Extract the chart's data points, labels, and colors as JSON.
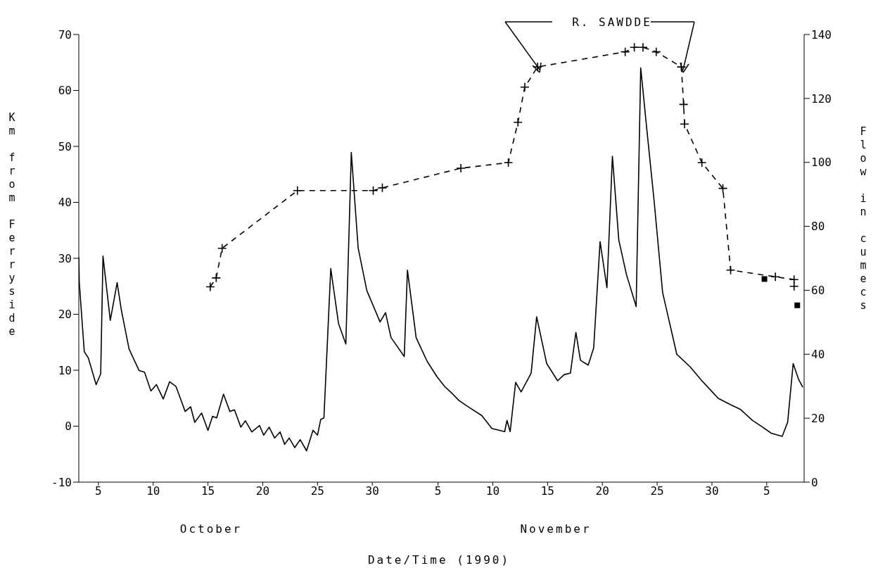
{
  "chart_data": {
    "type": "line",
    "xlabel": "Date/Time (1990)",
    "ylabel": "Km from Ferryside",
    "y2label": "Flow in cumecs",
    "annotations": [
      "R. SAWDDE",
      "October",
      "November"
    ],
    "xlim": [
      "1990-10-03T05:00",
      "1990-12-08T10:00"
    ],
    "xticks": [
      {
        "value": "1990-10-05",
        "label": "5"
      },
      {
        "value": "1990-10-10",
        "label": "10"
      },
      {
        "value": "1990-10-15",
        "label": "15"
      },
      {
        "value": "1990-10-20",
        "label": "20"
      },
      {
        "value": "1990-10-25",
        "label": "25"
      },
      {
        "value": "1990-10-30",
        "label": "30"
      },
      {
        "value": "1990-11-05",
        "label": "5"
      },
      {
        "value": "1990-11-10",
        "label": "10"
      },
      {
        "value": "1990-11-15",
        "label": "15"
      },
      {
        "value": "1990-11-20",
        "label": "20"
      },
      {
        "value": "1990-11-25",
        "label": "25"
      },
      {
        "value": "1990-11-30",
        "label": "30"
      },
      {
        "value": "1990-12-05",
        "label": "5"
      }
    ],
    "ylim": [
      -10,
      70
    ],
    "yticks": [
      -10,
      0,
      10,
      20,
      30,
      40,
      50,
      60,
      70
    ],
    "y2lim": [
      0,
      140
    ],
    "y2ticks": [
      0,
      20,
      40,
      60,
      80,
      100,
      120,
      140
    ],
    "series": [
      {
        "type": "line",
        "axis": "y2",
        "color": "#000000",
        "marker": "none",
        "line_style": "solid",
        "x": [
          "1990-10-03T05:00",
          "1990-10-03T06:00",
          "1990-10-03T17:00",
          "1990-10-04T02:00",
          "1990-10-04T19:00",
          "1990-10-05T05:00",
          "1990-10-05T10:00",
          "1990-10-06T02:00",
          "1990-10-06T17:00",
          "1990-10-07T02:00",
          "1990-10-07T19:00",
          "1990-10-08T17:00",
          "1990-10-09T05:00",
          "1990-10-09T19:00",
          "1990-10-10T07:00",
          "1990-10-10T22:00",
          "1990-10-11T12:00",
          "1990-10-12T02:00",
          "1990-10-12T22:00",
          "1990-10-13T10:00",
          "1990-10-13T19:00",
          "1990-10-14T10:00",
          "1990-10-15T00:00",
          "1990-10-15T10:00",
          "1990-10-15T19:00",
          "1990-10-16T10:00",
          "1990-10-17T00:00",
          "1990-10-17T10:00",
          "1990-10-18T00:00",
          "1990-10-18T10:00",
          "1990-10-19T00:00",
          "1990-10-19T17:00",
          "1990-10-20T02:00",
          "1990-10-20T14:00",
          "1990-10-21T02:00",
          "1990-10-21T14:00",
          "1990-10-22T00:00",
          "1990-10-22T10:00",
          "1990-10-22T22:00",
          "1990-10-23T10:00",
          "1990-10-24T00:00",
          "1990-10-24T14:00",
          "1990-10-25T00:00",
          "1990-10-25T07:00",
          "1990-10-25T14:00",
          "1990-10-26T05:00",
          "1990-10-26T22:00",
          "1990-10-27T14:00",
          "1990-10-28T02:00",
          "1990-10-28T17:00",
          "1990-10-29T12:00",
          "1990-10-30T17:00",
          "1990-10-31T05:00",
          "1990-10-31T17:00",
          "1990-11-01T22:00",
          "1990-11-02T05:00",
          "1990-11-03T00:00",
          "1990-11-04T00:00",
          "1990-11-04T22:00",
          "1990-11-05T14:00",
          "1990-11-06T05:00",
          "1990-11-06T22:00",
          "1990-11-07T22:00",
          "1990-11-09T00:00",
          "1990-11-09T22:00",
          "1990-11-11T02:00",
          "1990-11-11T07:00",
          "1990-11-11T14:00",
          "1990-11-12T02:00",
          "1990-11-12T14:00",
          "1990-11-13T12:00",
          "1990-11-14T00:00",
          "1990-11-14T22:00",
          "1990-11-15T22:00",
          "1990-11-16T12:00",
          "1990-11-17T02:00",
          "1990-11-17T14:00",
          "1990-11-18T00:00",
          "1990-11-18T17:00",
          "1990-11-19T05:00",
          "1990-11-19T19:00",
          "1990-11-20T10:00",
          "1990-11-20T22:00",
          "1990-11-21T12:00",
          "1990-11-22T05:00",
          "1990-11-23T02:00",
          "1990-11-23T12:00",
          "1990-11-24T00:00",
          "1990-11-24T17:00",
          "1990-11-25T12:00",
          "1990-11-26T19:00",
          "1990-11-28T00:00",
          "1990-11-29T02:00",
          "1990-11-30T14:00",
          "1990-12-01T17:00",
          "1990-12-02T14:00",
          "1990-12-03T17:00",
          "1990-12-04T14:00",
          "1990-12-05T10:00",
          "1990-12-06T10:00",
          "1990-12-06T22:00",
          "1990-12-07T10:00",
          "1990-12-07T22:00",
          "1990-12-08T07:00"
        ],
        "values": [
          70.4,
          62.6,
          40.8,
          38.8,
          30.5,
          33.9,
          70.7,
          50.6,
          62.4,
          54.0,
          41.7,
          34.9,
          34.4,
          28.5,
          30.5,
          26.0,
          31.4,
          29.9,
          22.1,
          23.6,
          18.7,
          21.6,
          16.2,
          20.6,
          20.1,
          27.5,
          22.1,
          22.6,
          17.2,
          19.2,
          15.7,
          17.7,
          14.7,
          17.2,
          13.8,
          15.7,
          11.8,
          13.8,
          10.8,
          13.3,
          9.8,
          16.2,
          14.7,
          19.6,
          20.1,
          66.8,
          49.6,
          43.2,
          103.1,
          73.2,
          59.9,
          50.1,
          53.0,
          45.2,
          39.3,
          66.3,
          45.2,
          37.8,
          32.9,
          30.0,
          28.0,
          25.5,
          23.2,
          20.8,
          16.8,
          15.8,
          19.3,
          15.8,
          31.2,
          28.2,
          34.1,
          51.7,
          37.1,
          31.7,
          33.6,
          34.1,
          46.8,
          38.1,
          36.6,
          42.0,
          75.2,
          60.8,
          101.9,
          75.7,
          64.8,
          54.9,
          129.6,
          112.3,
          88.5,
          59.3,
          40.0,
          36.1,
          31.7,
          26.2,
          24.2,
          22.8,
          19.3,
          17.3,
          15.3,
          14.3,
          18.8,
          37.1,
          32.1,
          29.7
        ]
      },
      {
        "type": "line",
        "axis": "y",
        "color": "#000000",
        "marker": "cross",
        "line_style": "dashed",
        "x": [
          "1990-10-15T05:00",
          "1990-10-15T18:00",
          "1990-10-16T07:00",
          "1990-10-23T04:00",
          "1990-10-30T02:00",
          "1990-10-30T22:00",
          "1990-11-07T02:00",
          "1990-11-11T10:00",
          "1990-11-12T07:00",
          "1990-11-12T22:00",
          "1990-11-14T02:00",
          "1990-11-22T02:00",
          "1990-11-22T22:00",
          "1990-11-23T17:00",
          "1990-11-24T22:00",
          "1990-11-27T05:00",
          "1990-11-27T10:00",
          "1990-11-27T12:00",
          "1990-11-29T02:00",
          "1990-12-01T00:00",
          "1990-12-01T17:00",
          "1990-12-05T19:00",
          "1990-12-07T12:00",
          "1990-12-07T12:00"
        ],
        "values": [
          24.9,
          26.5,
          31.8,
          42.1,
          42.1,
          42.6,
          46.1,
          47.1,
          54.3,
          60.6,
          64.2,
          66.9,
          67.7,
          67.7,
          66.9,
          64.2,
          57.5,
          54.0,
          47.1,
          42.5,
          27.9,
          26.7,
          26.2,
          25.0
        ]
      },
      {
        "type": "scatter",
        "axis": "y",
        "color": "#000000",
        "marker": "square",
        "x": [
          "1990-12-04T19:00",
          "1990-12-07T19:00"
        ],
        "values": [
          26.3,
          21.6
        ]
      }
    ]
  }
}
